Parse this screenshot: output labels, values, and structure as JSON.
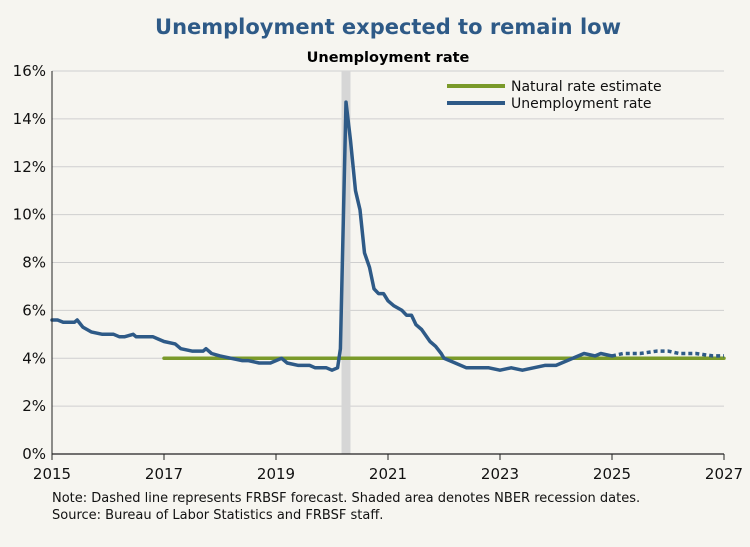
{
  "title": "Unemployment expected to remain low",
  "chart_data": {
    "type": "line",
    "title": "Unemployment rate",
    "xlabel": "",
    "ylabel": "",
    "xlim": [
      2015,
      2027
    ],
    "ylim": [
      0,
      16
    ],
    "x_ticks": [
      2015,
      2017,
      2019,
      2021,
      2023,
      2025,
      2027
    ],
    "y_ticks": [
      0,
      2,
      4,
      6,
      8,
      10,
      12,
      14,
      16
    ],
    "y_tick_format": "percent",
    "grid": "horizontal",
    "legend": "top-right",
    "recession_shading": [
      [
        2020.17,
        2020.33
      ]
    ],
    "series": [
      {
        "name": "Natural rate estimate",
        "color": "#7a9a2a",
        "style": "solid",
        "points": [
          [
            2017.0,
            4.0
          ],
          [
            2027.0,
            4.0
          ]
        ]
      },
      {
        "name": "Unemployment rate",
        "color": "#2e5a87",
        "style": "solid",
        "points": [
          [
            2015.0,
            5.6
          ],
          [
            2015.1,
            5.6
          ],
          [
            2015.2,
            5.5
          ],
          [
            2015.3,
            5.5
          ],
          [
            2015.4,
            5.5
          ],
          [
            2015.45,
            5.6
          ],
          [
            2015.55,
            5.3
          ],
          [
            2015.7,
            5.1
          ],
          [
            2015.9,
            5.0
          ],
          [
            2016.0,
            5.0
          ],
          [
            2016.1,
            5.0
          ],
          [
            2016.2,
            4.9
          ],
          [
            2016.3,
            4.9
          ],
          [
            2016.45,
            5.0
          ],
          [
            2016.5,
            4.9
          ],
          [
            2016.65,
            4.9
          ],
          [
            2016.8,
            4.9
          ],
          [
            2016.9,
            4.8
          ],
          [
            2017.0,
            4.7
          ],
          [
            2017.2,
            4.6
          ],
          [
            2017.3,
            4.4
          ],
          [
            2017.5,
            4.3
          ],
          [
            2017.7,
            4.3
          ],
          [
            2017.75,
            4.4
          ],
          [
            2017.85,
            4.2
          ],
          [
            2018.0,
            4.1
          ],
          [
            2018.2,
            4.0
          ],
          [
            2018.4,
            3.9
          ],
          [
            2018.5,
            3.9
          ],
          [
            2018.7,
            3.8
          ],
          [
            2018.9,
            3.8
          ],
          [
            2019.0,
            3.9
          ],
          [
            2019.1,
            4.0
          ],
          [
            2019.2,
            3.8
          ],
          [
            2019.4,
            3.7
          ],
          [
            2019.6,
            3.7
          ],
          [
            2019.7,
            3.6
          ],
          [
            2019.8,
            3.6
          ],
          [
            2019.9,
            3.6
          ],
          [
            2020.0,
            3.5
          ],
          [
            2020.1,
            3.6
          ],
          [
            2020.15,
            4.4
          ],
          [
            2020.25,
            14.7
          ],
          [
            2020.33,
            13.1
          ],
          [
            2020.42,
            11.0
          ],
          [
            2020.5,
            10.2
          ],
          [
            2020.58,
            8.4
          ],
          [
            2020.67,
            7.8
          ],
          [
            2020.75,
            6.9
          ],
          [
            2020.83,
            6.7
          ],
          [
            2020.92,
            6.7
          ],
          [
            2021.0,
            6.4
          ],
          [
            2021.1,
            6.2
          ],
          [
            2021.25,
            6.0
          ],
          [
            2021.33,
            5.8
          ],
          [
            2021.42,
            5.8
          ],
          [
            2021.5,
            5.4
          ],
          [
            2021.6,
            5.2
          ],
          [
            2021.75,
            4.7
          ],
          [
            2021.85,
            4.5
          ],
          [
            2021.95,
            4.2
          ],
          [
            2022.0,
            4.0
          ],
          [
            2022.2,
            3.8
          ],
          [
            2022.4,
            3.6
          ],
          [
            2022.6,
            3.6
          ],
          [
            2022.8,
            3.6
          ],
          [
            2023.0,
            3.5
          ],
          [
            2023.2,
            3.6
          ],
          [
            2023.4,
            3.5
          ],
          [
            2023.6,
            3.6
          ],
          [
            2023.8,
            3.7
          ],
          [
            2024.0,
            3.7
          ],
          [
            2024.2,
            3.9
          ],
          [
            2024.4,
            4.1
          ],
          [
            2024.5,
            4.2
          ],
          [
            2024.7,
            4.1
          ],
          [
            2024.8,
            4.2
          ],
          [
            2025.0,
            4.1
          ]
        ]
      },
      {
        "name": "Unemployment rate forecast",
        "color": "#2e5a87",
        "style": "dashed",
        "points": [
          [
            2025.0,
            4.1
          ],
          [
            2025.2,
            4.2
          ],
          [
            2025.5,
            4.2
          ],
          [
            2025.8,
            4.3
          ],
          [
            2026.0,
            4.3
          ],
          [
            2026.2,
            4.2
          ],
          [
            2026.5,
            4.2
          ],
          [
            2026.8,
            4.1
          ],
          [
            2027.0,
            4.1
          ]
        ]
      }
    ]
  },
  "legend": {
    "natural": "Natural rate estimate",
    "unemployment": "Unemployment rate"
  },
  "notes": {
    "line1": "Note: Dashed line represents FRBSF forecast. Shaded area denotes NBER recession dates.",
    "line2": "Source: Bureau of Labor Statistics and FRBSF staff."
  }
}
